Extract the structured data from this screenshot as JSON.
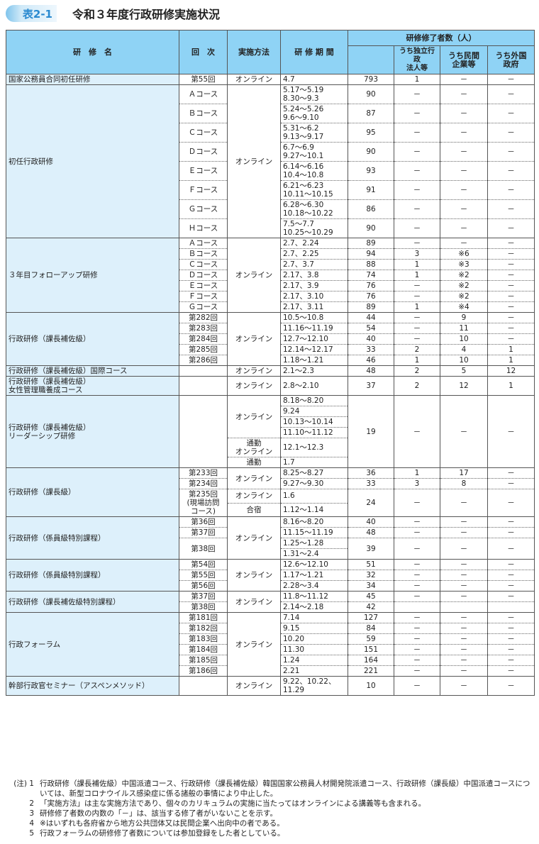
{
  "title": {
    "badge": "表2-1",
    "text": "令和３年度行政研修実施状況"
  },
  "header": {
    "name": "研　修　名",
    "round": "回　次",
    "method": "実施方法",
    "period": "研 修 期 間",
    "completed": "研修修了者数（人）",
    "sub1": "うち独立行政\n法人等",
    "sub2": "うち民間\n企業等",
    "sub3": "うち外国\n政府"
  },
  "groups": [
    {
      "name": "国家公務員合同初任研修",
      "rows": [
        {
          "round": "第55回",
          "method": "オンライン",
          "period": "4.7",
          "total": "793",
          "a": "1",
          "b": "－",
          "c": "－"
        }
      ]
    },
    {
      "name": "初任行政研修",
      "rows": [
        {
          "round": "Ａコース",
          "method": "オンライン",
          "period": "5.17～5.19\n8.30～9.3",
          "total": "90",
          "a": "－",
          "b": "－",
          "c": "－"
        },
        {
          "round": "Ｂコース",
          "period": "5.24～5.26\n9.6～9.10",
          "total": "87",
          "a": "－",
          "b": "－",
          "c": "－"
        },
        {
          "round": "Ｃコース",
          "period": "5.31～6.2\n9.13～9.17",
          "total": "95",
          "a": "－",
          "b": "－",
          "c": "－"
        },
        {
          "round": "Ｄコース",
          "period": "6.7～6.9\n9.27～10.1",
          "total": "90",
          "a": "－",
          "b": "－",
          "c": "－"
        },
        {
          "round": "Ｅコース",
          "period": "6.14～6.16\n10.4～10.8",
          "total": "93",
          "a": "－",
          "b": "－",
          "c": "－"
        },
        {
          "round": "Ｆコース",
          "period": "6.21～6.23\n10.11～10.15",
          "total": "91",
          "a": "－",
          "b": "－",
          "c": "－"
        },
        {
          "round": "Ｇコース",
          "period": "6.28～6.30\n10.18～10.22",
          "total": "86",
          "a": "－",
          "b": "－",
          "c": "－"
        },
        {
          "round": "Ｈコース",
          "period": "7.5～7.7\n10.25～10.29",
          "total": "90",
          "a": "－",
          "b": "－",
          "c": "－"
        }
      ]
    },
    {
      "name": "３年目フォローアップ研修",
      "rows": [
        {
          "round": "Ａコース",
          "method": "オンライン",
          "period": "2.7、2.24",
          "total": "89",
          "a": "－",
          "b": "－",
          "c": "－"
        },
        {
          "round": "Ｂコース",
          "period": "2.7、2.25",
          "total": "94",
          "a": "3",
          "b": "※6",
          "c": "－"
        },
        {
          "round": "Ｃコース",
          "period": "2.7、3.7",
          "total": "88",
          "a": "1",
          "b": "※3",
          "c": "－"
        },
        {
          "round": "Ｄコース",
          "period": "2.17、3.8",
          "total": "74",
          "a": "1",
          "b": "※2",
          "c": "－"
        },
        {
          "round": "Ｅコース",
          "period": "2.17、3.9",
          "total": "76",
          "a": "－",
          "b": "※2",
          "c": "－"
        },
        {
          "round": "Ｆコース",
          "period": "2.17、3.10",
          "total": "76",
          "a": "－",
          "b": "※2",
          "c": "－"
        },
        {
          "round": "Ｇコース",
          "period": "2.17、3.11",
          "total": "89",
          "a": "1",
          "b": "※4",
          "c": "－"
        }
      ]
    },
    {
      "name": "行政研修（課長補佐級）",
      "rows": [
        {
          "round": "第282回",
          "method": "オンライン",
          "period": "10.5～10.8",
          "total": "44",
          "a": "－",
          "b": "9",
          "c": "－"
        },
        {
          "round": "第283回",
          "period": "11.16～11.19",
          "total": "54",
          "a": "－",
          "b": "11",
          "c": "－"
        },
        {
          "round": "第284回",
          "period": "12.7～12.10",
          "total": "40",
          "a": "－",
          "b": "10",
          "c": "－"
        },
        {
          "round": "第285回",
          "period": "12.14～12.17",
          "total": "33",
          "a": "2",
          "b": "4",
          "c": "1"
        },
        {
          "round": "第286回",
          "period": "1.18～1.21",
          "total": "46",
          "a": "1",
          "b": "10",
          "c": "1"
        }
      ]
    },
    {
      "name": "行政研修（課長補佐級）国際コース",
      "rows": [
        {
          "round": "",
          "method": "オンライン",
          "period": "2.1～2.3",
          "total": "48",
          "a": "2",
          "b": "5",
          "c": "12"
        }
      ]
    },
    {
      "name": "行政研修（課長補佐級）\n女性管理職養成コース",
      "rows": [
        {
          "round": "",
          "method": "オンライン",
          "period": "2.8～2.10",
          "total": "37",
          "a": "2",
          "b": "12",
          "c": "1"
        }
      ]
    },
    {
      "name": "行政研修（課長補佐級）\nリーダーシップ研修",
      "rows": [
        {
          "round": "",
          "method": "オンライン",
          "period": "8.18～8.20",
          "total": "19",
          "a": "－",
          "b": "－",
          "c": "－"
        },
        {
          "period": "9.24"
        },
        {
          "period": "10.13～10.14"
        },
        {
          "period": "11.10～11.12"
        },
        {
          "method": "通勤\nオンライン",
          "period": "12.1～12.3"
        },
        {
          "method": "通勤",
          "period": "1.7"
        }
      ]
    },
    {
      "name": "行政研修（課長級）",
      "rows": [
        {
          "round": "第233回",
          "method": "オンライン",
          "period": "8.25～8.27",
          "total": "36",
          "a": "1",
          "b": "17",
          "c": "－"
        },
        {
          "round": "第234回",
          "period": "9.27～9.30",
          "total": "33",
          "a": "3",
          "b": "8",
          "c": "－"
        },
        {
          "round": "第235回\n(現場訪問\nコース)",
          "method": "オンライン",
          "period": "1.6",
          "total": "24",
          "a": "－",
          "b": "－",
          "c": "－"
        },
        {
          "method": "合宿",
          "period": "1.12～1.14"
        }
      ]
    },
    {
      "name": "行政研修（係員級特別課程）",
      "rows": [
        {
          "round": "第36回",
          "method": "オンライン",
          "period": "8.16～8.20",
          "total": "40",
          "a": "－",
          "b": "－",
          "c": "－"
        },
        {
          "round": "第37回",
          "period": "11.15～11.19",
          "total": "48",
          "a": "－",
          "b": "－",
          "c": "－"
        },
        {
          "round": "第38回",
          "period": "1.25～1.28",
          "total": "39",
          "a": "－",
          "b": "－",
          "c": "－"
        },
        {
          "period": "1.31～2.4"
        }
      ]
    },
    {
      "name": "行政研修（係員級特別課程）",
      "rows": [
        {
          "round": "第54回",
          "method": "オンライン",
          "period": "12.6～12.10",
          "total": "51",
          "a": "－",
          "b": "－",
          "c": "－"
        },
        {
          "round": "第55回",
          "period": "1.17～1.21",
          "total": "32",
          "a": "－",
          "b": "－",
          "c": "－"
        },
        {
          "round": "第56回",
          "period": "2.28～3.4",
          "total": "34",
          "a": "－",
          "b": "－",
          "c": "－"
        }
      ]
    },
    {
      "name": "行政研修（課長補佐級特別課程）",
      "rows": [
        {
          "round": "第37回",
          "method": "オンライン",
          "period": "11.8～11.12",
          "total": "45",
          "a": "－",
          "b": "－",
          "c": "－"
        },
        {
          "round": "第38回",
          "period": "2.14～2.18",
          "total": "42"
        }
      ]
    },
    {
      "name": "行政フォーラム",
      "rows": [
        {
          "round": "第181回",
          "method": "オンライン",
          "period": "7.14",
          "total": "127",
          "a": "－",
          "b": "－",
          "c": "－"
        },
        {
          "round": "第182回",
          "period": "9.15",
          "total": "84",
          "a": "－",
          "b": "－",
          "c": "－"
        },
        {
          "round": "第183回",
          "period": "10.20",
          "total": "59",
          "a": "－",
          "b": "－",
          "c": "－"
        },
        {
          "round": "第184回",
          "period": "11.30",
          "total": "151",
          "a": "－",
          "b": "－",
          "c": "－"
        },
        {
          "round": "第185回",
          "period": "1.24",
          "total": "164",
          "a": "－",
          "b": "－",
          "c": "－"
        },
        {
          "round": "第186回",
          "period": "2.21",
          "total": "221",
          "a": "－",
          "b": "－",
          "c": "－"
        }
      ]
    },
    {
      "name": "幹部行政官セミナー（アスペンメソッド）",
      "rows": [
        {
          "round": "",
          "method": "オンライン",
          "period": "9.22、10.22、\n11.29",
          "total": "10",
          "a": "－",
          "b": "－",
          "c": "－"
        }
      ]
    }
  ],
  "notes": {
    "label": "(注) 1",
    "items": [
      {
        "num": "1",
        "text": "行政研修（課長補佐級）中国派遣コース、行政研修（課長補佐級）韓国国家公務員人材開発院派遣コース、行政研修（課長級）中国派遣コースについては、新型コロナウイルス感染症に係る諸般の事情により中止した。"
      },
      {
        "num": "2",
        "text": "「実施方法」は主な実施方法であり、個々のカリキュラムの実施に当たってはオンラインによる講義等も含まれる。"
      },
      {
        "num": "3",
        "text": "研修修了者数の内数の「－」は、該当する修了者がいないことを示す。"
      },
      {
        "num": "4",
        "text": "※はいずれも各府省から地方公共団体又は民間企業へ出向中の者である。"
      },
      {
        "num": "5",
        "text": "行政フォーラムの研修修了者数については参加登録をした者としている。"
      }
    ]
  },
  "colors": {
    "header": "#8fd3f5",
    "name_column": "#ddf0fb",
    "badge": "#2a8ad0"
  }
}
